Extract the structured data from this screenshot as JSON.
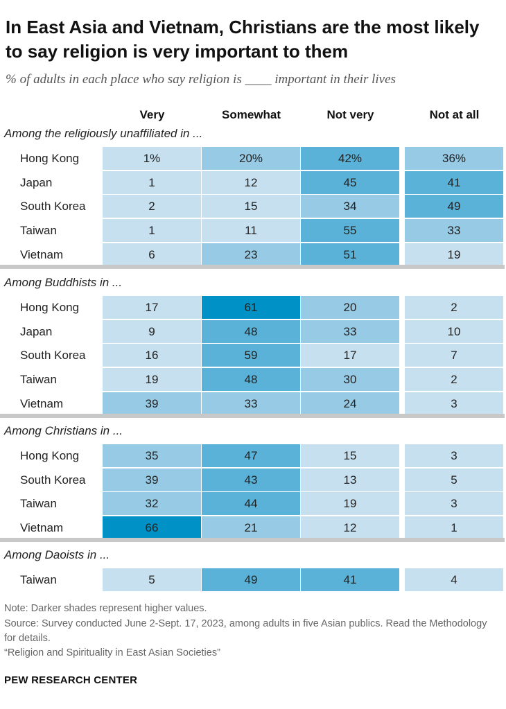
{
  "title": "In East Asia and Vietnam, Christians are the most likely to say religion is very important to them",
  "subtitle": "% of adults in each place who say religion is ____ important in their lives",
  "colors": {
    "lightest": "#c6e0f0",
    "light": "#96cae5",
    "medium": "#5ab2d9",
    "dark": "#0092c6",
    "divider": "#c8c8c8"
  },
  "chart_data": {
    "type": "table",
    "columns": [
      "Very",
      "Somewhat",
      "Not very",
      "Not at all"
    ],
    "sections": [
      {
        "title": "Among the religiously unaffiliated in ...",
        "rows": [
          {
            "label": "Hong Kong",
            "values": [
              1,
              20,
              42,
              36
            ],
            "display": [
              "1%",
              "20%",
              "42%",
              "36%"
            ]
          },
          {
            "label": "Japan",
            "values": [
              1,
              12,
              45,
              41
            ],
            "display": [
              "1",
              "12",
              "45",
              "41"
            ]
          },
          {
            "label": "South Korea",
            "values": [
              2,
              15,
              34,
              49
            ],
            "display": [
              "2",
              "15",
              "34",
              "49"
            ]
          },
          {
            "label": "Taiwan",
            "values": [
              1,
              11,
              55,
              33
            ],
            "display": [
              "1",
              "11",
              "55",
              "33"
            ]
          },
          {
            "label": "Vietnam",
            "values": [
              6,
              23,
              51,
              19
            ],
            "display": [
              "6",
              "23",
              "51",
              "19"
            ]
          }
        ]
      },
      {
        "title": "Among Buddhists in ...",
        "rows": [
          {
            "label": "Hong Kong",
            "values": [
              17,
              61,
              20,
              2
            ],
            "display": [
              "17",
              "61",
              "20",
              "2"
            ]
          },
          {
            "label": "Japan",
            "values": [
              9,
              48,
              33,
              10
            ],
            "display": [
              "9",
              "48",
              "33",
              "10"
            ]
          },
          {
            "label": "South Korea",
            "values": [
              16,
              59,
              17,
              7
            ],
            "display": [
              "16",
              "59",
              "17",
              "7"
            ]
          },
          {
            "label": "Taiwan",
            "values": [
              19,
              48,
              30,
              2
            ],
            "display": [
              "19",
              "48",
              "30",
              "2"
            ]
          },
          {
            "label": "Vietnam",
            "values": [
              39,
              33,
              24,
              3
            ],
            "display": [
              "39",
              "33",
              "24",
              "3"
            ]
          }
        ]
      },
      {
        "title": "Among Christians in ...",
        "rows": [
          {
            "label": "Hong Kong",
            "values": [
              35,
              47,
              15,
              3
            ],
            "display": [
              "35",
              "47",
              "15",
              "3"
            ]
          },
          {
            "label": "South Korea",
            "values": [
              39,
              43,
              13,
              5
            ],
            "display": [
              "39",
              "43",
              "13",
              "5"
            ]
          },
          {
            "label": "Taiwan",
            "values": [
              32,
              44,
              19,
              3
            ],
            "display": [
              "32",
              "44",
              "19",
              "3"
            ]
          },
          {
            "label": "Vietnam",
            "values": [
              66,
              21,
              12,
              1
            ],
            "display": [
              "66",
              "21",
              "12",
              "1"
            ]
          }
        ]
      },
      {
        "title": "Among Daoists in ...",
        "rows": [
          {
            "label": "Taiwan",
            "values": [
              5,
              49,
              41,
              4
            ],
            "display": [
              "5",
              "49",
              "41",
              "4"
            ]
          }
        ]
      }
    ]
  },
  "notes": {
    "note": "Note: Darker shades represent higher values.",
    "source": "Source: Survey conducted June 2-Sept. 17, 2023, among adults in five Asian publics. Read the Methodology for details.",
    "report": "“Religion and Spirituality in East Asian Societies”"
  },
  "brand": "PEW RESEARCH CENTER"
}
